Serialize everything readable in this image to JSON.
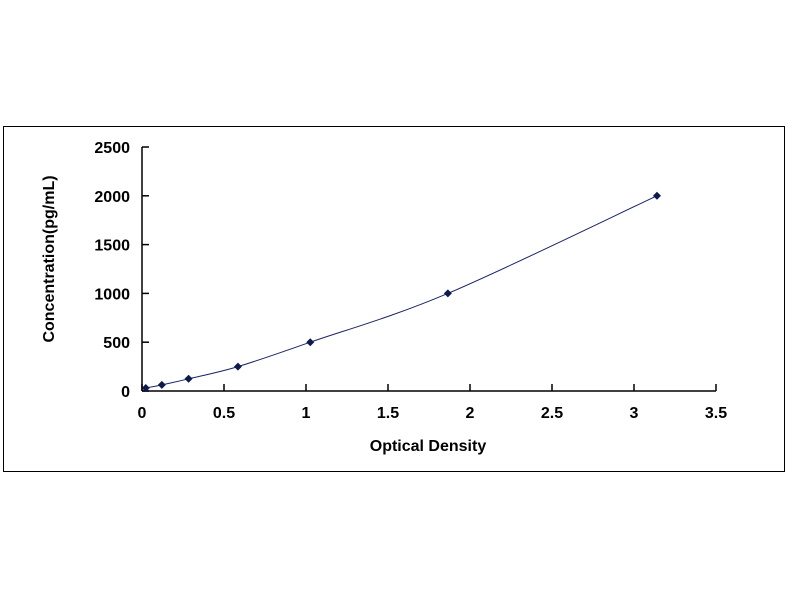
{
  "chart_data": {
    "type": "scatter",
    "title": "",
    "xlabel": "Optical Density",
    "ylabel": "Concentration(pg/mL)",
    "xlim": [
      0,
      3.5
    ],
    "ylim": [
      0,
      2500
    ],
    "xticks": [
      "0",
      "0.5",
      "1",
      "1.5",
      "2",
      "2.5",
      "3",
      "3.5"
    ],
    "yticks": [
      "0",
      "500",
      "1000",
      "1500",
      "2000",
      "2500"
    ],
    "grid": false,
    "legend": "none",
    "series": [
      {
        "x": [
          0.023,
          0.121,
          0.284,
          0.585,
          1.026,
          1.865,
          3.14
        ],
        "y": [
          31.25,
          62.5,
          125,
          250,
          500,
          1000,
          2000
        ],
        "marker": "diamond",
        "trendline": "smooth curve"
      }
    ],
    "colors": {
      "marker": "#0d1a4d",
      "line": "#1a2466"
    }
  }
}
